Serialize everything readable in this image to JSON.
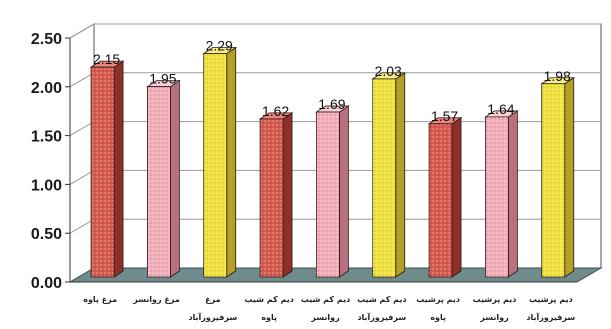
{
  "chart_data": {
    "type": "bar",
    "title": "",
    "xlabel": "",
    "ylabel": "",
    "ylim": [
      0,
      2.5
    ],
    "yticks": [
      "0.00",
      "0.50",
      "1.00",
      "1.50",
      "2.00",
      "2.50"
    ],
    "grid": true,
    "categories": [
      [
        "مرغ پاوه"
      ],
      [
        "مرغ روانسر"
      ],
      [
        "مرغ",
        "سرفیروزآباد"
      ],
      [
        "دیم کم شیب",
        "پاوه"
      ],
      [
        "دیم کم شیب",
        "روانسر"
      ],
      [
        "دیم کم شیب",
        "سرفیروزآباد"
      ],
      [
        "دیم پرشیب",
        "پاوه"
      ],
      [
        "دیم پرشیب",
        "روانسر"
      ],
      [
        "دیم پرشیب",
        "سرفیروزآباد"
      ]
    ],
    "values": [
      2.15,
      1.95,
      2.29,
      1.62,
      1.69,
      2.03,
      1.57,
      1.64,
      1.98
    ],
    "value_labels": [
      "2.15",
      "1.95",
      "2.29",
      "1.62",
      "1.69",
      "2.03",
      "1.57",
      "1.64",
      "1.98"
    ],
    "bar_colors": [
      {
        "front": "#d65a4e",
        "side": "#8e2f28",
        "top": "#e98478"
      },
      {
        "front": "#f3aeb9",
        "side": "#b9707c",
        "top": "#f8cfd6"
      },
      {
        "front": "#f2e23e",
        "side": "#b3a024",
        "top": "#f8ef84"
      },
      {
        "front": "#d65a4e",
        "side": "#8e2f28",
        "top": "#e98478"
      },
      {
        "front": "#f3aeb9",
        "side": "#b9707c",
        "top": "#f8cfd6"
      },
      {
        "front": "#f2e23e",
        "side": "#b3a024",
        "top": "#f8ef84"
      },
      {
        "front": "#d65a4e",
        "side": "#8e2f28",
        "top": "#e98478"
      },
      {
        "front": "#f3aeb9",
        "side": "#b9707c",
        "top": "#f8cfd6"
      },
      {
        "front": "#f2e23e",
        "side": "#b3a024",
        "top": "#f8ef84"
      }
    ],
    "floor_color": "#6f8b8b",
    "wall_color": "#ffffff",
    "grid_color": "#9a9a9a"
  }
}
